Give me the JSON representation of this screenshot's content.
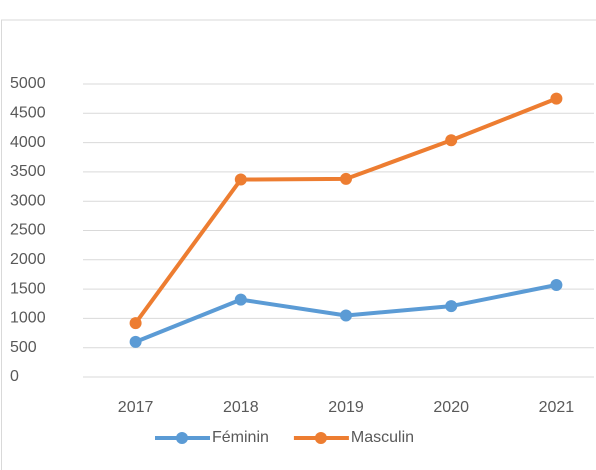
{
  "chart_data": {
    "type": "line",
    "categories": [
      "2017",
      "2018",
      "2019",
      "2020",
      "2021"
    ],
    "series": [
      {
        "name": "Féminin",
        "color": "#5b9bd5",
        "values": [
          600,
          1320,
          1050,
          1210,
          1570
        ]
      },
      {
        "name": "Masculin",
        "color": "#ed7d31",
        "values": [
          920,
          3370,
          3380,
          4040,
          4750
        ]
      }
    ],
    "ylim": [
      0,
      5000
    ],
    "yticks": [
      0,
      500,
      1000,
      1500,
      2000,
      2500,
      3000,
      3500,
      4000,
      4500,
      5000
    ],
    "grid": true,
    "legend": "bottom"
  }
}
